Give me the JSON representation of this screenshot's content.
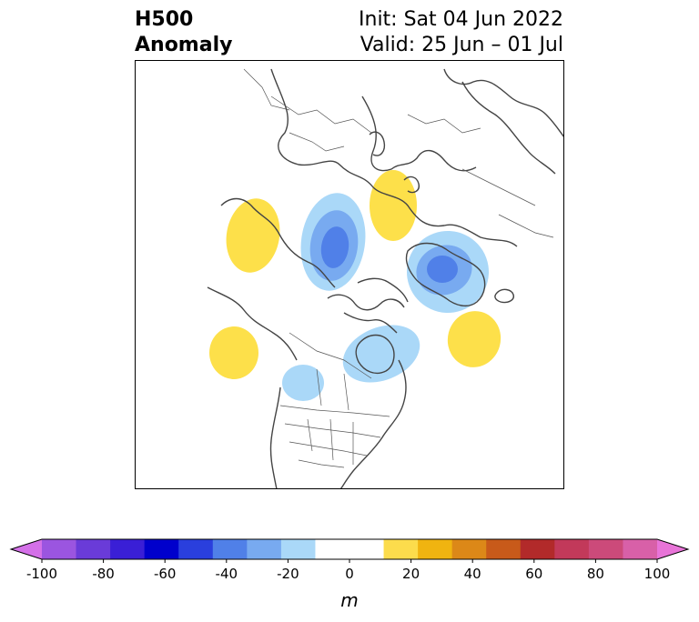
{
  "header": {
    "title_line1": "H500",
    "title_line2": "Anomaly",
    "init_text": "Init: Sat 04 Jun 2022",
    "valid_text": "Valid: 25 Jun – 01 Jul"
  },
  "map": {
    "projection": "polar stereographic, North Pole",
    "anomaly_features": [
      {
        "sign": "positive",
        "level": 10,
        "region": "northwest Russia"
      },
      {
        "sign": "positive",
        "level": 10,
        "region": "Alaska"
      },
      {
        "sign": "positive",
        "level": 10,
        "region": "North Pacific"
      },
      {
        "sign": "positive",
        "level": 10,
        "region": "North Atlantic"
      },
      {
        "sign": "negative",
        "level": -40,
        "region": "East Siberian Sea"
      },
      {
        "sign": "negative",
        "level": -40,
        "region": "Greenland"
      },
      {
        "sign": "negative",
        "level": -10,
        "region": "Hudson Bay"
      },
      {
        "sign": "negative",
        "level": -10,
        "region": "western Canada"
      }
    ]
  },
  "colorbar": {
    "unit": "m",
    "min": -100,
    "max": 100,
    "step": 10,
    "extend": "both",
    "tick_labels": [
      "-100",
      "-80",
      "-60",
      "-40",
      "-20",
      "0",
      "20",
      "40",
      "60",
      "80",
      "100"
    ],
    "colors": [
      "#d470e8",
      "#9b55e0",
      "#6a3bd8",
      "#3a1fd6",
      "#0000cc",
      "#2a3fdd",
      "#5080e8",
      "#78aaf0",
      "#aad8f8",
      "#ffffff",
      "#ffffff",
      "#fcdc4c",
      "#f0b410",
      "#dc8818",
      "#c85a1a",
      "#b22a2a",
      "#c2395a",
      "#cc4a7a",
      "#d860a8",
      "#e874d8"
    ]
  }
}
